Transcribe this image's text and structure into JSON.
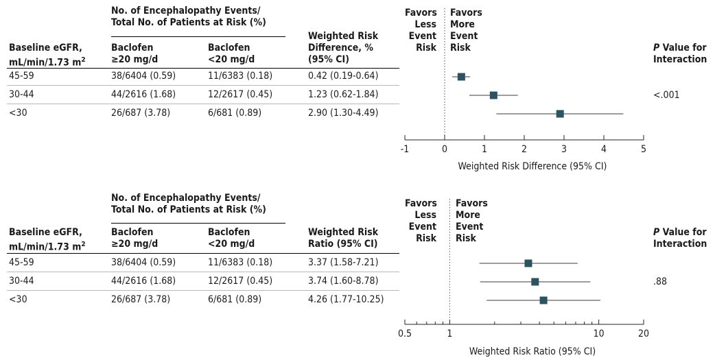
{
  "panels": [
    {
      "group_header": "No. of Encephalopathy Events/\nTotal No. of Patients at Risk (%)",
      "col_egfr": "Baseline eGFR,\nmL/min/1.73 m",
      "col_egfr_sup": "2",
      "col_high": "Baclofen\n≥20 mg/d",
      "col_low": "Baclofen\n<20 mg/d",
      "col_effect": "Weighted Risk\nDifference, %\n(95% CI)",
      "favors_left": "Favors\nLess\nEvent\nRisk",
      "favors_right": "Favors\nMore\nEvent\nRisk",
      "pval_header_italic": "P",
      "pval_header_rest": " Value for",
      "pval_header_line2": "Interaction",
      "p_value": "<.001",
      "rows": [
        {
          "egfr": "45-59",
          "high": "38/6404 (0.59)",
          "low": "11/6383 (0.18)",
          "effect": "0.42 (0.19-0.64)"
        },
        {
          "egfr": "30-44",
          "high": "44/2616 (1.68)",
          "low": "12/2617 (0.45)",
          "effect": "1.23 (0.62-1.84)"
        },
        {
          "egfr": "<30",
          "high": "26/687 (3.78)",
          "low": "6/681 (0.89)",
          "effect": "2.90 (1.30-4.49)"
        }
      ]
    },
    {
      "group_header": "No. of Encephalopathy Events/\nTotal No. of Patients at Risk (%)",
      "col_egfr": "Baseline eGFR,\nmL/min/1.73 m",
      "col_egfr_sup": "2",
      "col_high": "Baclofen\n≥20 mg/d",
      "col_low": "Baclofen\n<20 mg/d",
      "col_effect": "Weighted Risk\nRatio (95% CI)",
      "favors_left": "Favors\nLess\nEvent\nRisk",
      "favors_right": "Favors\nMore\nEvent\nRisk",
      "pval_header_italic": "P",
      "pval_header_rest": " Value for",
      "pval_header_line2": "Interaction",
      "p_value": ".88",
      "rows": [
        {
          "egfr": "45-59",
          "high": "38/6404 (0.59)",
          "low": "11/6383 (0.18)",
          "effect": "3.37 (1.58-7.21)"
        },
        {
          "egfr": "30-44",
          "high": "44/2616 (1.68)",
          "low": "12/2617 (0.45)",
          "effect": "3.74 (1.60-8.78)"
        },
        {
          "egfr": "<30",
          "high": "26/687 (3.78)",
          "low": "6/681 (0.89)",
          "effect": "4.26 (1.77-10.25)"
        }
      ]
    }
  ],
  "chart_data": [
    {
      "type": "scatter",
      "xlabel": "Weighted Risk Difference (95% CI)",
      "xscale": "linear",
      "xlim": [
        -1,
        5
      ],
      "ticks": [
        -1,
        0,
        1,
        2,
        3,
        4,
        5
      ],
      "tick_labels": [
        "-1",
        "0",
        "1",
        "2",
        "3",
        "4",
        "5"
      ],
      "reference_line": 0,
      "categories": [
        "45-59",
        "30-44",
        "<30"
      ],
      "estimates": [
        0.42,
        1.23,
        2.9
      ],
      "ci_lower": [
        0.19,
        0.62,
        1.3
      ],
      "ci_upper": [
        0.64,
        1.84,
        4.49
      ],
      "marker_color": "#2d5361",
      "grid": false
    },
    {
      "type": "scatter",
      "xlabel": "Weighted Risk Ratio (95% CI)",
      "xscale": "log",
      "xlim": [
        0.5,
        20
      ],
      "ticks": [
        0.5,
        1,
        10,
        20
      ],
      "tick_labels": [
        "0.5",
        "1",
        "10",
        "20"
      ],
      "minor_ticks": [
        0.6,
        0.7,
        0.8,
        0.9,
        2,
        3,
        4,
        5,
        6,
        7,
        8,
        9
      ],
      "reference_line": 1,
      "categories": [
        "45-59",
        "30-44",
        "<30"
      ],
      "estimates": [
        3.37,
        3.74,
        4.26
      ],
      "ci_lower": [
        1.58,
        1.6,
        1.77
      ],
      "ci_upper": [
        7.21,
        8.78,
        10.25
      ],
      "marker_color": "#2d5361",
      "grid": false
    }
  ]
}
